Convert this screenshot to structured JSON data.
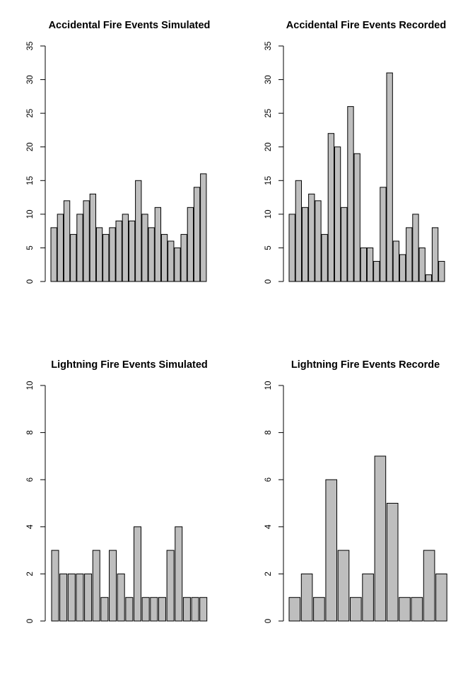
{
  "bar_fill": "#bebebe",
  "chart_data": [
    {
      "type": "bar",
      "title": "Accidental Fire Events Simulated",
      "xlabel": "",
      "ylabel": "",
      "ylim": [
        0,
        35
      ],
      "yticks": [
        "0",
        "5",
        "10",
        "15",
        "20",
        "25",
        "30",
        "35"
      ],
      "values": [
        8,
        10,
        12,
        7,
        10,
        12,
        13,
        8,
        7,
        8,
        9,
        10,
        9,
        15,
        10,
        8,
        11,
        7,
        6,
        5,
        7,
        11,
        14,
        16
      ]
    },
    {
      "type": "bar",
      "title": "Accidental Fire Events Recorded",
      "xlabel": "",
      "ylabel": "",
      "ylim": [
        0,
        35
      ],
      "yticks": [
        "0",
        "5",
        "10",
        "15",
        "20",
        "25",
        "30",
        "35"
      ],
      "values": [
        10,
        15,
        11,
        13,
        12,
        7,
        22,
        20,
        11,
        26,
        19,
        5,
        5,
        3,
        14,
        31,
        6,
        4,
        8,
        10,
        5,
        1,
        8,
        3
      ]
    },
    {
      "type": "bar",
      "title": "Lightning Fire Events Simulated",
      "xlabel": "",
      "ylabel": "",
      "ylim": [
        0,
        10
      ],
      "yticks": [
        "0",
        "2",
        "4",
        "6",
        "8",
        "10"
      ],
      "values": [
        3,
        2,
        2,
        2,
        2,
        3,
        1,
        3,
        2,
        1,
        4,
        1,
        1,
        1,
        3,
        4,
        1,
        1,
        1
      ]
    },
    {
      "type": "bar",
      "title": "Lightning Fire Events Recorde",
      "xlabel": "",
      "ylabel": "",
      "ylim": [
        0,
        10
      ],
      "yticks": [
        "0",
        "2",
        "4",
        "6",
        "8",
        "10"
      ],
      "values": [
        1,
        2,
        1,
        6,
        3,
        1,
        2,
        7,
        5,
        1,
        1,
        3,
        2
      ]
    }
  ]
}
